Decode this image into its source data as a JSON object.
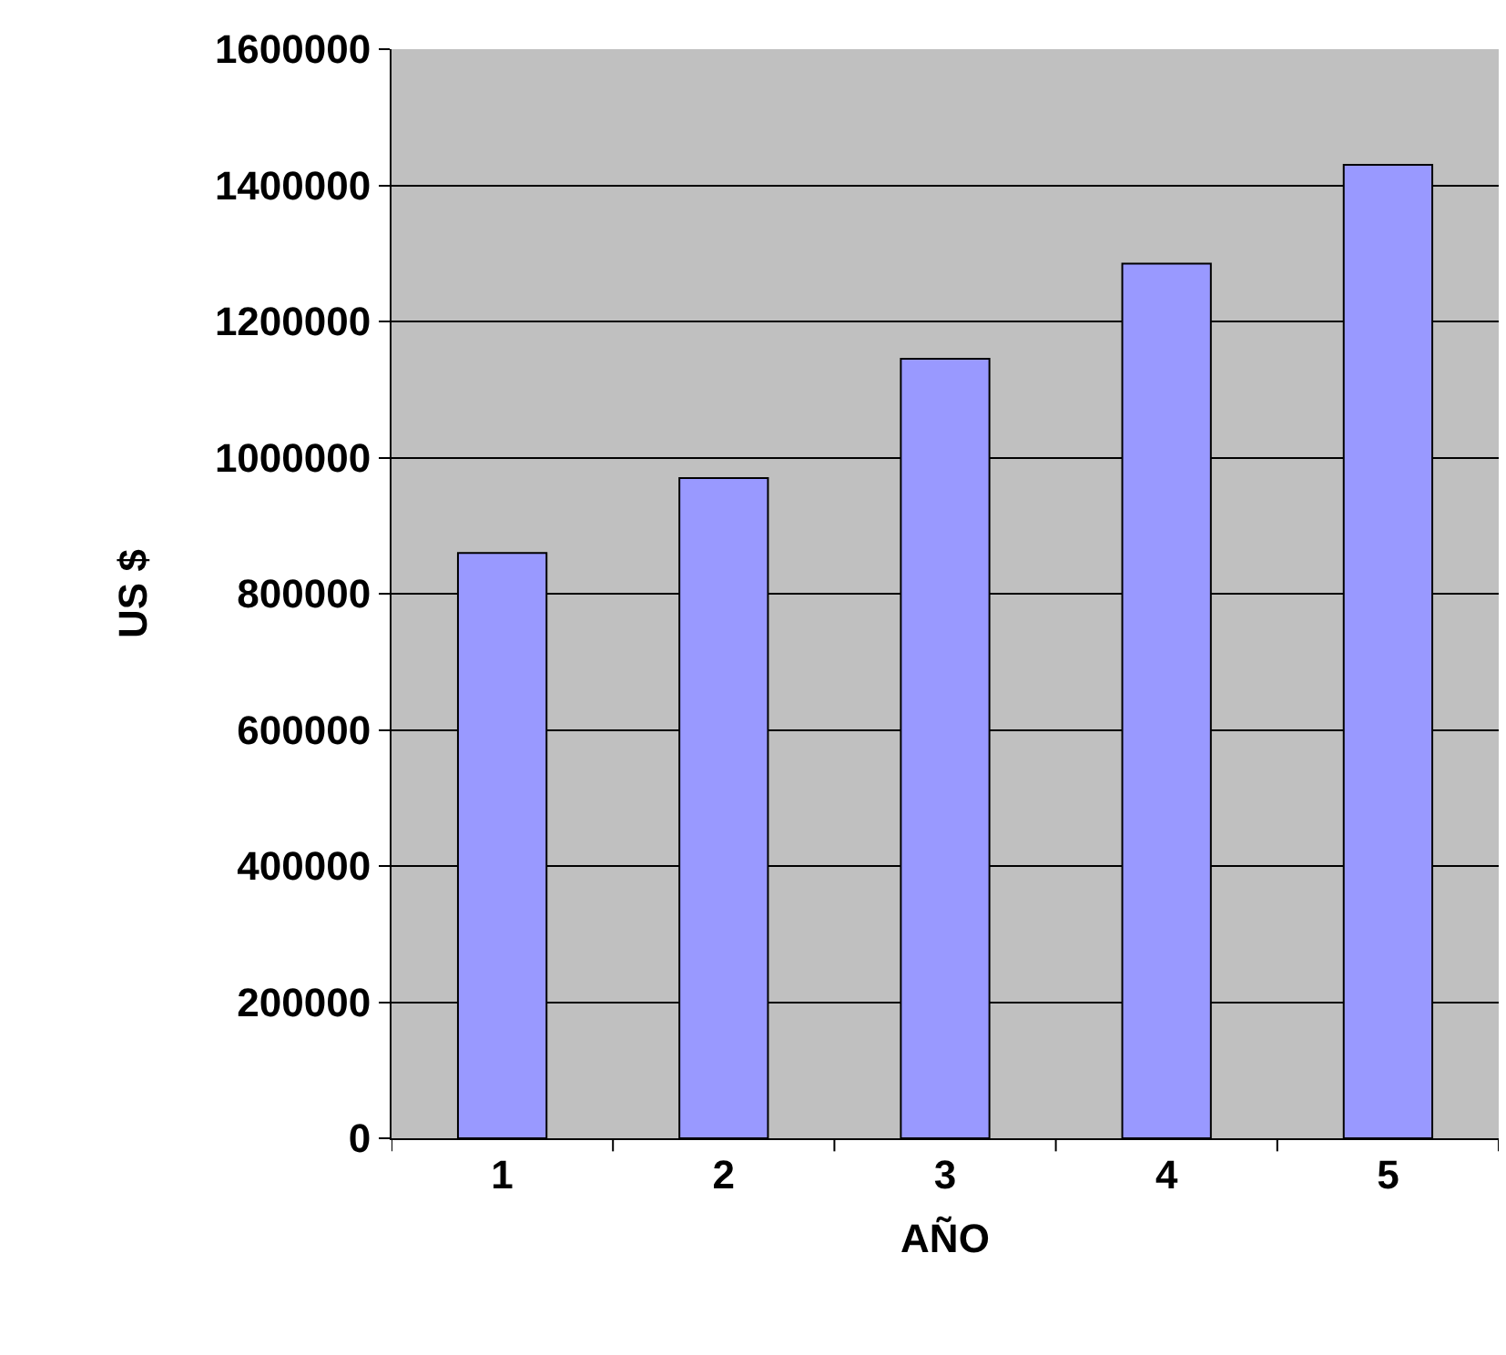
{
  "chart_data": {
    "type": "bar",
    "xlabel": "AÑO",
    "ylabel": "US $",
    "categories": [
      "1",
      "2",
      "3",
      "4",
      "5"
    ],
    "values": [
      860000,
      970000,
      1145000,
      1285000,
      1430000
    ],
    "color": "#9999ff",
    "ylim": [
      0,
      1600000
    ],
    "yticks": [
      0,
      200000,
      400000,
      600000,
      800000,
      1000000,
      1200000,
      1400000,
      1600000
    ],
    "grid": "y",
    "legend": false
  }
}
